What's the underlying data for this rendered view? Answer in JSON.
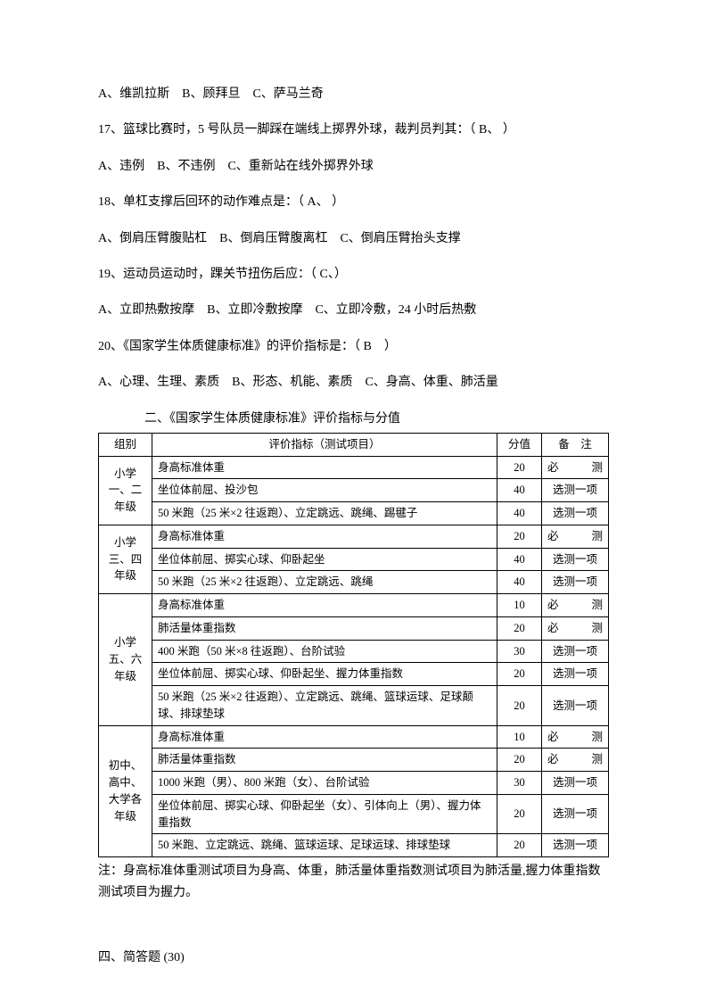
{
  "q16_options": "A、维凯拉斯　B、顾拜旦　C、萨马兰奇",
  "q17_text": "17、篮球比赛时，5 号队员一脚踩在端线上掷界外球，裁判员判其：（ B、 ）",
  "q17_options": "A、违例　B、不违例　C、重新站在线外掷界外球",
  "q18_text": "18、单杠支撑后回环的动作难点是：（ A、 ）",
  "q18_options": "A、倒肩压臂腹贴杠　B、倒肩压臂腹离杠　C、倒肩压臂抬头支撑",
  "q19_text": "19、运动员运动时，踝关节扭伤后应：（ C、）",
  "q19_options": "A、立即热敷按摩　B、立即冷敷按摩　C、立即冷敷，24 小时后热敷",
  "q20_text": "20、《国家学生体质健康标准》的评价指标是：（ B　）",
  "q20_options": "A、心理、生理、素质　B、形态、机能、素质　C、身高、体重、肺活量",
  "table_title": "二、《国家学生体质健康标准》评价指标与分值",
  "headers": {
    "group": "组别",
    "item": "评价指标（测试项目）",
    "score": "分值",
    "note": "备　注"
  },
  "groups": [
    {
      "label": "小学一、二年级",
      "rows": [
        {
          "item": "身高标准体重",
          "score": "20",
          "note": "必　　测",
          "spread": true
        },
        {
          "item": "坐位体前屈、投沙包",
          "score": "40",
          "note": "选测一项"
        },
        {
          "item": "50 米跑（25 米×2 往返跑）、立定跳远、跳绳、踢毽子",
          "score": "40",
          "note": "选测一项"
        }
      ]
    },
    {
      "label": "小学三、四年级",
      "rows": [
        {
          "item": "身高标准体重",
          "score": "20",
          "note": "必　　测",
          "spread": true
        },
        {
          "item": "坐位体前屈、掷实心球、仰卧起坐",
          "score": "40",
          "note": "选测一项"
        },
        {
          "item": "50 米跑（25 米×2 往返跑）、立定跳远、跳绳",
          "score": "40",
          "note": "选测一项"
        }
      ]
    },
    {
      "label": "小学五、六年级",
      "rows": [
        {
          "item": "身高标准体重",
          "score": "10",
          "note": "必　　测",
          "spread": true
        },
        {
          "item": "肺活量体重指数",
          "score": "20",
          "note": "必　　测",
          "spread": true
        },
        {
          "item": "400 米跑（50 米×8 往返跑）、台阶试验",
          "score": "30",
          "note": "选测一项"
        },
        {
          "item": "坐位体前屈、掷实心球、仰卧起坐、握力体重指数",
          "score": "20",
          "note": "选测一项"
        },
        {
          "item": "50 米跑（25 米×2 往返跑）、立定跳远、跳绳、篮球运球、足球颠球、排球垫球",
          "score": "20",
          "note": "选测一项"
        }
      ]
    },
    {
      "label": "初中、高中、大学各年级",
      "rows": [
        {
          "item": "身高标准体重",
          "score": "10",
          "note": "必　　测",
          "spread": true
        },
        {
          "item": "肺活量体重指数",
          "score": "20",
          "note": "必　　测",
          "spread": true
        },
        {
          "item": "1000 米跑（男）、800 米跑（女）、台阶试验",
          "score": "30",
          "note": "选测一项"
        },
        {
          "item": "坐位体前屈、掷实心球、仰卧起坐（女）、引体向上（男）、握力体重指数",
          "score": "20",
          "note": "选测一项"
        },
        {
          "item": "50 米跑、立定跳远、跳绳、篮球运球、足球运球、排球垫球",
          "score": "20",
          "note": "选测一项"
        }
      ]
    }
  ],
  "table_footnote": "注：身高标准体重测试项目为身高、体重，肺活量体重指数测试项目为肺活量,握力体重指数测试项目为握力。",
  "section4": "四、简答题 (30)"
}
